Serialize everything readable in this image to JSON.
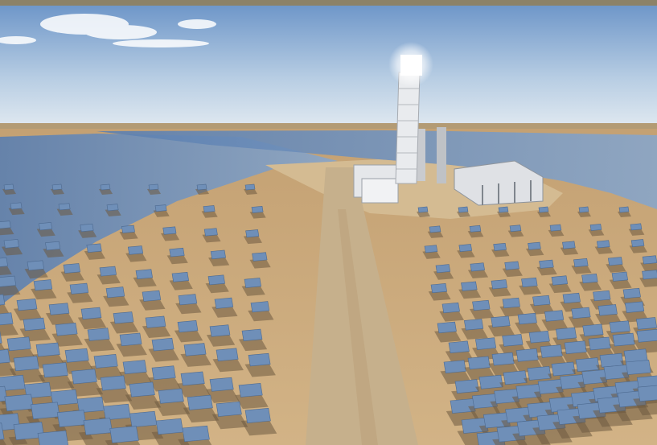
{
  "image": {
    "subject": "concentrated-solar-power-tower-plant-rendering",
    "colors": {
      "sky_top": "#6f97c9",
      "sky_horizon": "#dfe8f0",
      "desert": "#c9a878",
      "desert_dark": "#a98757",
      "mirror": "#6f8fb8",
      "mirror_far": "#7a96bf",
      "tower": "#e9ebee",
      "receiver_glow": "#ffffff",
      "road": "#c6b08c",
      "shadow": "#6e5a40"
    }
  }
}
